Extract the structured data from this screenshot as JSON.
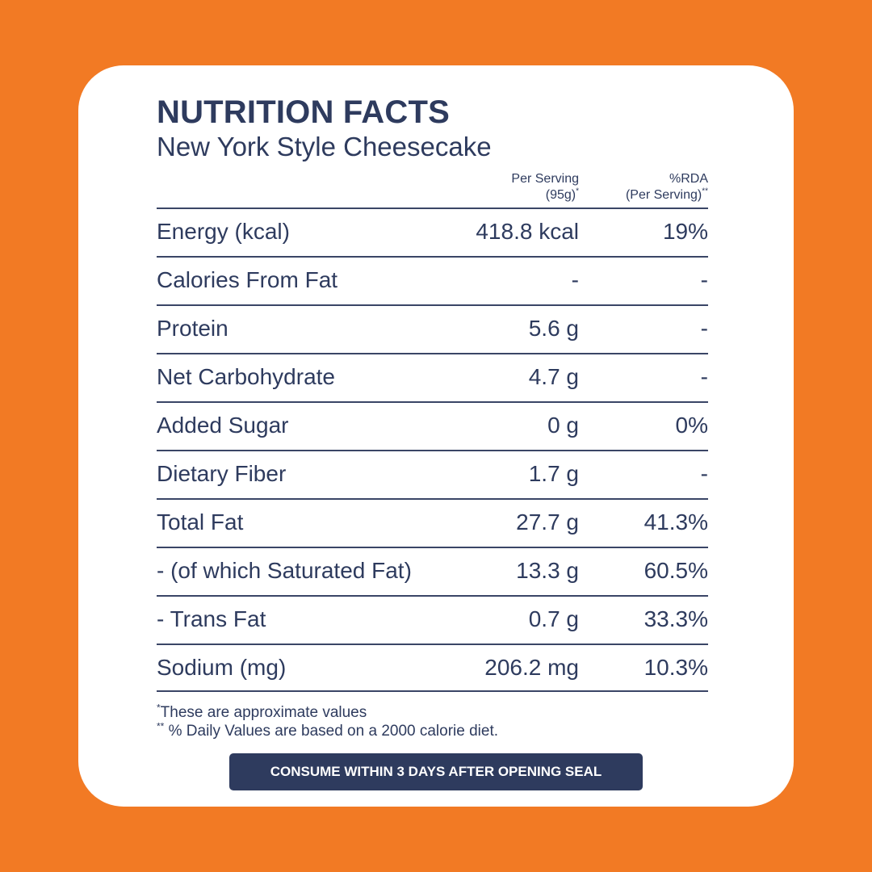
{
  "colors": {
    "background": "#F27A24",
    "card": "#FFFFFF",
    "text": "#2E3B5E",
    "banner": "#2E3B5E"
  },
  "title": "NUTRITION FACTS",
  "subtitle": "New York Style Cheesecake",
  "columns": {
    "serving_line1": "Per Serving",
    "serving_line2": "(95g)",
    "serving_mark": "*",
    "rda_line1": "%RDA",
    "rda_line2": "(Per Serving)",
    "rda_mark": "**"
  },
  "rows": [
    {
      "label": "Energy (kcal)",
      "per_serving": "418.8 kcal",
      "rda": "19%"
    },
    {
      "label": "Calories From Fat",
      "per_serving": "-",
      "rda": "-"
    },
    {
      "label": "Protein",
      "per_serving": "5.6 g",
      "rda": "-"
    },
    {
      "label": "Net Carbohydrate",
      "per_serving": "4.7 g",
      "rda": "-"
    },
    {
      "label": "Added Sugar",
      "per_serving": "0 g",
      "rda": "0%"
    },
    {
      "label": "Dietary Fiber",
      "per_serving": "1.7 g",
      "rda": "-"
    },
    {
      "label": "Total Fat",
      "per_serving": "27.7 g",
      "rda": "41.3%"
    },
    {
      "label": "- (of which Saturated Fat)",
      "per_serving": "13.3 g",
      "rda": "60.5%"
    },
    {
      "label": "- Trans Fat",
      "per_serving": "0.7 g",
      "rda": "33.3%"
    },
    {
      "label": "Sodium (mg)",
      "per_serving": "206.2 mg",
      "rda": "10.3%"
    }
  ],
  "footnotes": {
    "note1_mark": "*",
    "note1_text": "These are approximate values",
    "note2_mark": "**",
    "note2_text": " % Daily Values are based on a 2000 calorie diet."
  },
  "banner": "CONSUME WITHIN 3 DAYS AFTER OPENING SEAL"
}
